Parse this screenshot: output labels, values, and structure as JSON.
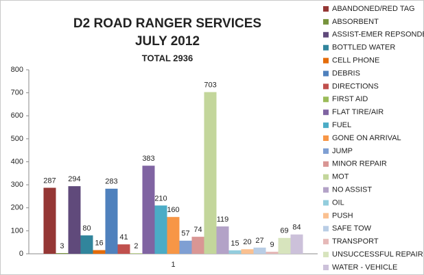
{
  "chart_data": {
    "type": "bar",
    "title": "D2 ROAD RANGER SERVICES",
    "subtitle": "JULY 2012",
    "annotation": "TOTAL 2936",
    "categories": [
      "1"
    ],
    "series": [
      {
        "name": "ABANDONED/RED TAG",
        "color": "#953735",
        "values": [
          287
        ]
      },
      {
        "name": "ABSORBENT",
        "color": "#77933C",
        "values": [
          3
        ]
      },
      {
        "name": "ASSIST-EMER REPSONDER",
        "color": "#604A7B",
        "values": [
          294
        ]
      },
      {
        "name": "BOTTLED WATER",
        "color": "#31859C",
        "values": [
          80
        ]
      },
      {
        "name": "CELL PHONE",
        "color": "#E46C0A",
        "values": [
          16
        ]
      },
      {
        "name": "DEBRIS",
        "color": "#4F81BD",
        "values": [
          283
        ]
      },
      {
        "name": "DIRECTIONS",
        "color": "#C0504D",
        "values": [
          41
        ]
      },
      {
        "name": "FIRST AID",
        "color": "#9BBB59",
        "values": [
          2
        ]
      },
      {
        "name": "FLAT TIRE/AIR",
        "color": "#8064A2",
        "values": [
          383
        ]
      },
      {
        "name": "FUEL",
        "color": "#4BACC6",
        "values": [
          210
        ]
      },
      {
        "name": "GONE ON ARRIVAL",
        "color": "#F79646",
        "values": [
          160
        ]
      },
      {
        "name": "JUMP",
        "color": "#7F9FD3",
        "values": [
          57
        ]
      },
      {
        "name": "MINOR REPAIR",
        "color": "#D99694",
        "values": [
          74
        ]
      },
      {
        "name": "MOT",
        "color": "#C3D69B",
        "values": [
          703
        ]
      },
      {
        "name": "NO ASSIST",
        "color": "#B3A2C7",
        "values": [
          119
        ]
      },
      {
        "name": "OIL",
        "color": "#93CDDD",
        "values": [
          15
        ]
      },
      {
        "name": "PUSH",
        "color": "#FAC090",
        "values": [
          20
        ]
      },
      {
        "name": "SAFE TOW",
        "color": "#B9CDE5",
        "values": [
          27
        ]
      },
      {
        "name": "TRANSPORT",
        "color": "#E6B9B8",
        "values": [
          9
        ]
      },
      {
        "name": "UNSUCCESSFUL REPAIR",
        "color": "#D7E4BD",
        "values": [
          69
        ]
      },
      {
        "name": "WATER - VEHICLE",
        "color": "#CCC1DA",
        "values": [
          84
        ]
      }
    ],
    "ylim": [
      0,
      800
    ],
    "yticks": [
      0,
      100,
      200,
      300,
      400,
      500,
      600,
      700,
      800
    ],
    "grid": false,
    "legend": "right"
  }
}
